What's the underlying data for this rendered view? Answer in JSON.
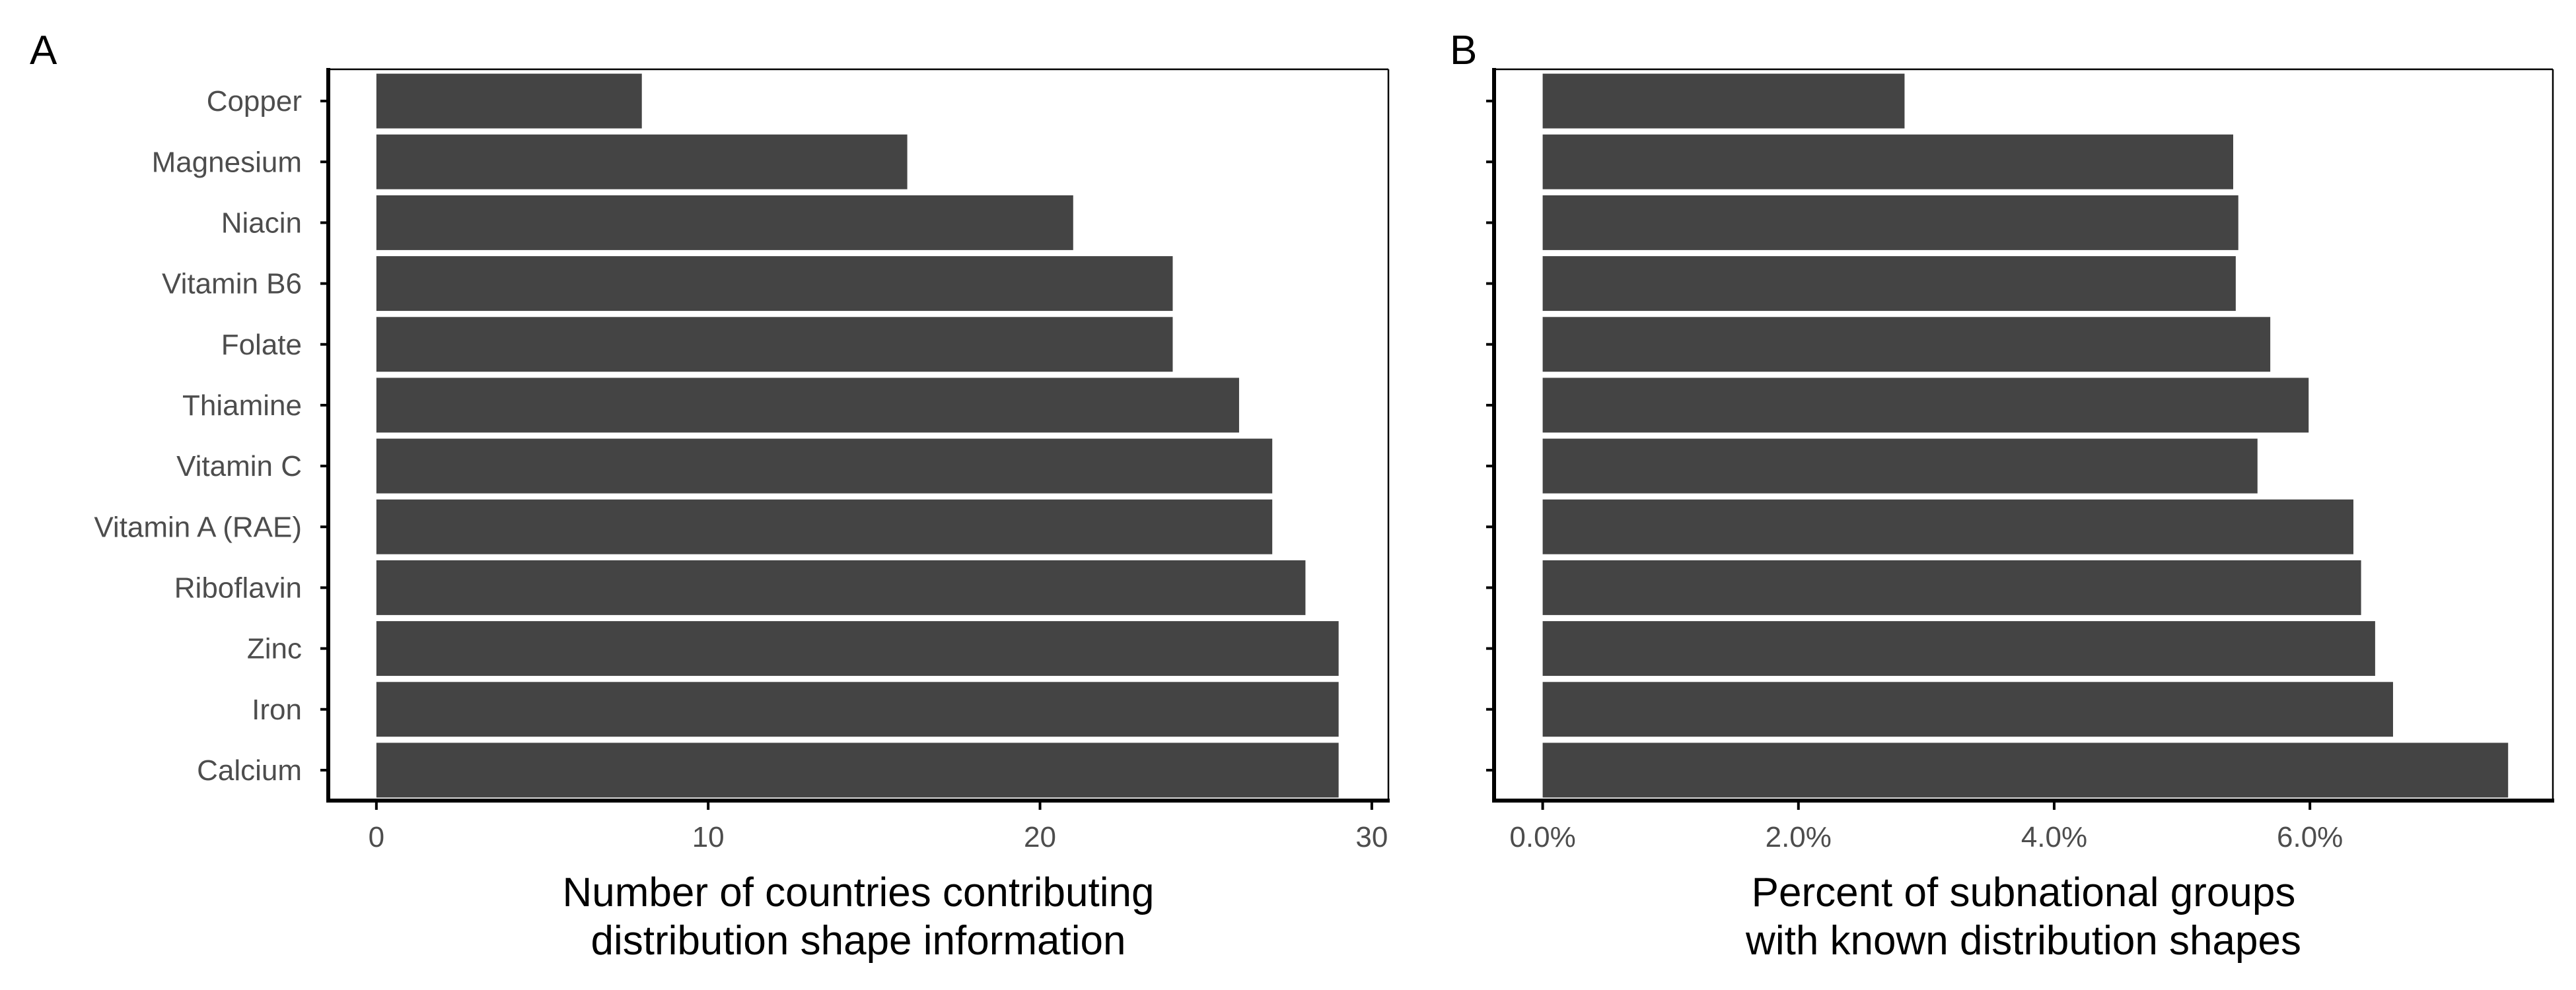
{
  "figure": {
    "bar_color": "#444444",
    "axis_color": "#000000",
    "text_color": "#4d4d4d"
  },
  "chart_data": [
    {
      "tag": "A",
      "type": "bar",
      "orientation": "horizontal",
      "categories": [
        "Copper",
        "Magnesium",
        "Niacin",
        "Vitamin B6",
        "Folate",
        "Thiamine",
        "Vitamin C",
        "Vitamin A (RAE)",
        "Riboflavin",
        "Zinc",
        "Iron",
        "Calcium"
      ],
      "values": [
        8,
        16,
        21,
        24,
        24,
        26,
        27,
        27,
        28,
        29,
        29,
        29
      ],
      "xlabel": [
        "Number of countries contributing",
        "distribution shape information"
      ],
      "ylabel": "",
      "xlim": [
        -1.45,
        30.5
      ],
      "ticks": [
        0,
        10,
        20,
        30
      ],
      "tick_labels": [
        "0",
        "10",
        "20",
        "30"
      ],
      "grid": false
    },
    {
      "tag": "B",
      "type": "bar",
      "orientation": "horizontal",
      "categories": [
        "Copper",
        "Magnesium",
        "Niacin",
        "Vitamin B6",
        "Folate",
        "Thiamine",
        "Vitamin C",
        "Vitamin A (RAE)",
        "Riboflavin",
        "Zinc",
        "Iron",
        "Calcium"
      ],
      "values": [
        2.83,
        5.4,
        5.44,
        5.42,
        5.69,
        5.99,
        5.59,
        6.34,
        6.4,
        6.51,
        6.65,
        7.55
      ],
      "value_unit": "percent",
      "xlabel": [
        "Percent of subnational groups",
        "with known distribution shapes"
      ],
      "ylabel": "",
      "xlim": [
        -0.38,
        7.9
      ],
      "ticks": [
        0,
        2,
        4,
        6
      ],
      "tick_labels": [
        "0.0%",
        "2.0%",
        "4.0%",
        "6.0%"
      ],
      "grid": false
    }
  ]
}
